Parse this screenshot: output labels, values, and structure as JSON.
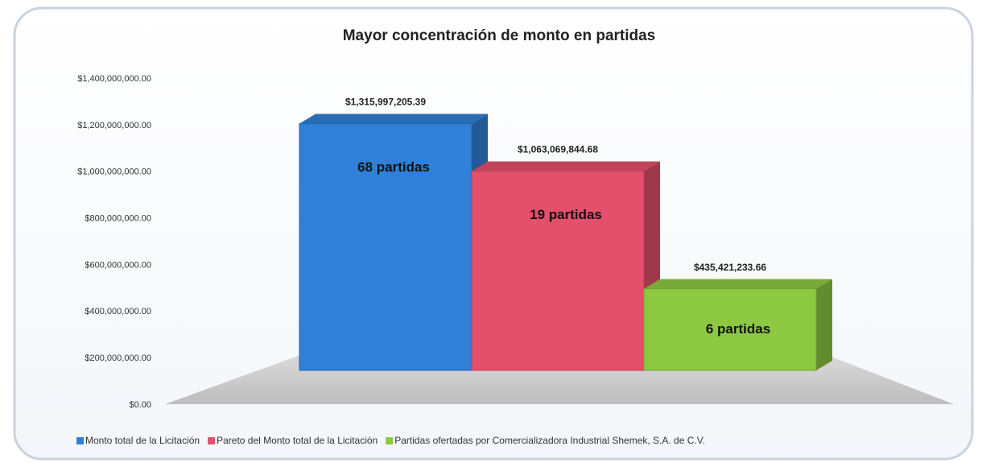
{
  "chart_data": {
    "type": "bar3d",
    "title": "Mayor concentración de monto en partidas",
    "series": [
      {
        "name": "Monto total de la Licitación",
        "color": "#2f80d6",
        "values": [
          1315997205.39
        ],
        "value_labels": [
          "$1,315,997,205.39"
        ],
        "annotation": "68 partidas"
      },
      {
        "name": "Pareto del Monto total de la Licitación",
        "color": "#e4506b",
        "values": [
          1063069844.68
        ],
        "value_labels": [
          "$1,063,069,844.68"
        ],
        "annotation": "19 partidas"
      },
      {
        "name": "Partidas ofertadas por Comercializadora Industrial Shemek, S.A. de C.V.",
        "color": "#8dc843",
        "values": [
          435421233.66
        ],
        "value_labels": [
          "$435,421,233.66"
        ],
        "annotation": "6 partidas"
      }
    ],
    "ylim": [
      0,
      1400000000
    ],
    "yticks": [
      {
        "value": 0,
        "label": "$0.00"
      },
      {
        "value": 200000000,
        "label": "$200,000,000.00"
      },
      {
        "value": 400000000,
        "label": "$400,000,000.00"
      },
      {
        "value": 600000000,
        "label": "$600,000,000.00"
      },
      {
        "value": 800000000,
        "label": "$800,000,000.00"
      },
      {
        "value": 1000000000,
        "label": "$1,000,000,000.00"
      },
      {
        "value": 1200000000,
        "label": "$1,200,000,000.00"
      },
      {
        "value": 1400000000,
        "label": "$1,400,000,000.00"
      }
    ],
    "legend": "bottom"
  }
}
